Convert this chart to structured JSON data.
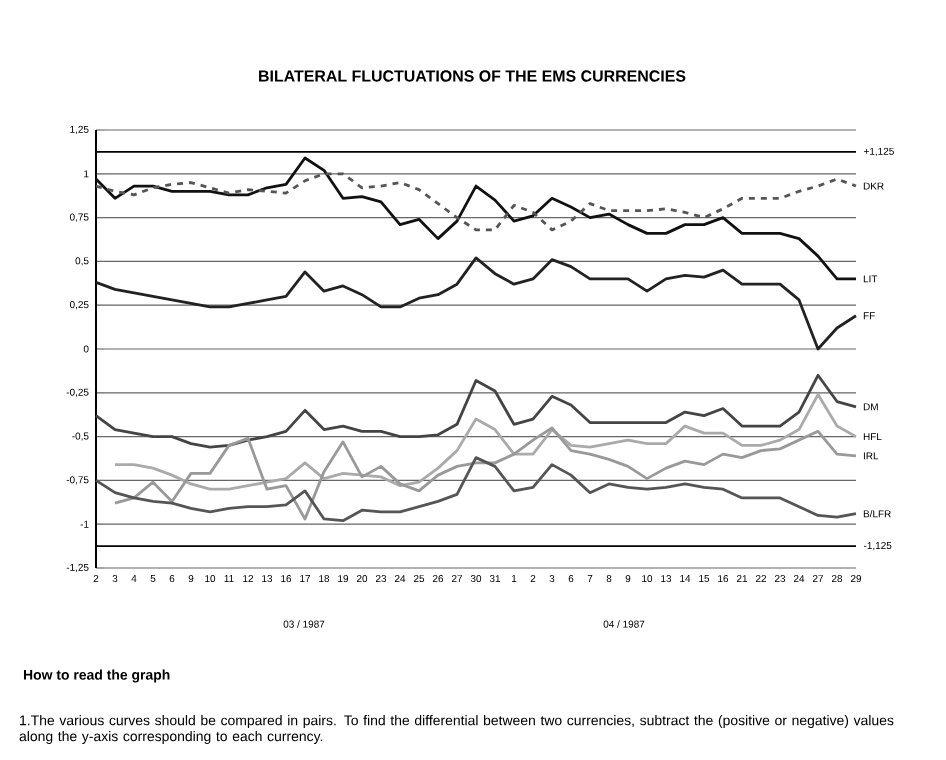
{
  "chart_data": {
    "type": "line",
    "title": "BILATERAL FLUCTUATIONS OF THE EMS CURRENCIES",
    "categories": [
      "2",
      "3",
      "4",
      "5",
      "6",
      "9",
      "10",
      "11",
      "12",
      "13",
      "16",
      "17",
      "18",
      "19",
      "20",
      "23",
      "24",
      "25",
      "26",
      "27",
      "30",
      "31",
      "1",
      "2",
      "3",
      "6",
      "7",
      "8",
      "9",
      "10",
      "13",
      "14",
      "15",
      "16",
      "21",
      "22",
      "23",
      "24",
      "27",
      "28",
      "29"
    ],
    "series": [
      {
        "name": "LIT",
        "color": "#111111",
        "values": [
          0.97,
          0.86,
          0.93,
          0.93,
          0.9,
          0.9,
          0.9,
          0.88,
          0.88,
          0.92,
          0.94,
          1.09,
          1.02,
          0.86,
          0.87,
          0.84,
          0.71,
          0.74,
          0.63,
          0.73,
          0.93,
          0.85,
          0.73,
          0.76,
          0.86,
          0.81,
          0.75,
          0.77,
          0.71,
          0.66,
          0.66,
          0.71,
          0.71,
          0.75,
          0.66,
          0.66,
          0.66,
          0.63,
          0.53,
          0.4,
          0.4
        ]
      },
      {
        "name": "DKR",
        "color": "#555555",
        "line_style": "dashed",
        "values": [
          0.93,
          0.9,
          0.88,
          0.92,
          0.94,
          0.95,
          0.92,
          0.89,
          0.91,
          0.9,
          0.89,
          0.96,
          1.0,
          1.0,
          0.92,
          0.93,
          0.95,
          0.91,
          0.83,
          0.75,
          0.68,
          0.68,
          0.82,
          0.78,
          0.68,
          0.73,
          0.83,
          0.79,
          0.79,
          0.79,
          0.8,
          0.78,
          0.75,
          0.8,
          0.86,
          0.86,
          0.86,
          0.9,
          0.93,
          0.97,
          0.93
        ]
      },
      {
        "name": "FF",
        "color": "#222222",
        "values": [
          0.38,
          0.34,
          0.32,
          0.3,
          0.28,
          0.26,
          0.24,
          0.24,
          0.26,
          0.28,
          0.3,
          0.44,
          0.33,
          0.36,
          0.31,
          0.24,
          0.24,
          0.29,
          0.31,
          0.37,
          0.52,
          0.43,
          0.37,
          0.4,
          0.51,
          0.47,
          0.4,
          0.4,
          0.4,
          0.33,
          0.4,
          0.42,
          0.41,
          0.45,
          0.37,
          0.37,
          0.37,
          0.28,
          0.0,
          0.12,
          0.19
        ]
      },
      {
        "name": "DM",
        "color": "#444444",
        "values": [
          -0.38,
          -0.46,
          -0.48,
          -0.5,
          -0.5,
          -0.54,
          -0.56,
          -0.55,
          -0.52,
          -0.5,
          -0.47,
          -0.35,
          -0.46,
          -0.44,
          -0.47,
          -0.47,
          -0.5,
          -0.5,
          -0.49,
          -0.43,
          -0.18,
          -0.24,
          -0.43,
          -0.4,
          -0.27,
          -0.32,
          -0.42,
          -0.42,
          -0.42,
          -0.42,
          -0.42,
          -0.36,
          -0.38,
          -0.34,
          -0.44,
          -0.44,
          -0.44,
          -0.36,
          -0.15,
          -0.3,
          -0.33
        ]
      },
      {
        "name": "HFL",
        "color": "#aaaaaa",
        "values": [
          null,
          -0.66,
          -0.66,
          -0.68,
          -0.72,
          -0.77,
          -0.8,
          -0.8,
          -0.78,
          -0.76,
          -0.74,
          -0.65,
          -0.74,
          -0.71,
          -0.72,
          -0.73,
          -0.78,
          -0.76,
          -0.68,
          -0.58,
          -0.4,
          -0.46,
          -0.6,
          -0.6,
          -0.46,
          -0.55,
          -0.56,
          -0.54,
          -0.52,
          -0.54,
          -0.54,
          -0.44,
          -0.48,
          -0.48,
          -0.55,
          -0.55,
          -0.52,
          -0.46,
          -0.26,
          -0.44,
          -0.5
        ]
      },
      {
        "name": "IRL",
        "color": "#999999",
        "values": [
          null,
          -0.88,
          -0.85,
          -0.76,
          -0.87,
          -0.71,
          -0.71,
          -0.55,
          -0.51,
          -0.8,
          -0.78,
          -0.97,
          -0.7,
          -0.53,
          -0.73,
          -0.67,
          -0.77,
          -0.81,
          -0.72,
          -0.67,
          -0.65,
          -0.65,
          -0.6,
          -0.52,
          -0.45,
          -0.58,
          -0.6,
          -0.63,
          -0.67,
          -0.74,
          -0.68,
          -0.64,
          -0.66,
          -0.6,
          -0.62,
          -0.58,
          -0.57,
          -0.52,
          -0.47,
          -0.6,
          -0.61
        ]
      },
      {
        "name": "B/LFR",
        "color": "#555555",
        "values": [
          -0.75,
          -0.82,
          -0.85,
          -0.87,
          -0.88,
          -0.91,
          -0.93,
          -0.91,
          -0.9,
          -0.9,
          -0.89,
          -0.81,
          -0.97,
          -0.98,
          -0.92,
          -0.93,
          -0.93,
          -0.9,
          -0.87,
          -0.83,
          -0.62,
          -0.67,
          -0.81,
          -0.79,
          -0.66,
          -0.72,
          -0.82,
          -0.77,
          -0.79,
          -0.8,
          -0.79,
          -0.77,
          -0.79,
          -0.8,
          -0.85,
          -0.85,
          -0.85,
          -0.9,
          -0.95,
          -0.96,
          -0.94
        ]
      }
    ],
    "ylim": [
      -1.25,
      1.25
    ],
    "yticks": [
      {
        "value": 1.25,
        "label": "1,25"
      },
      1,
      {
        "value": 0.75,
        "label": "0,75"
      },
      {
        "value": 0.5,
        "label": "0,5"
      },
      {
        "value": 0.25,
        "label": "0,25"
      },
      0,
      {
        "value": -0.25,
        "label": "-0,25"
      },
      {
        "value": -0.5,
        "label": "-0,5"
      },
      {
        "value": -0.75,
        "label": "-0,75"
      },
      -1,
      {
        "value": -1.25,
        "label": "-1,25"
      }
    ],
    "grid": "y",
    "ref_lines": [
      {
        "axis": "y",
        "value": 1.125,
        "label": "+1,125"
      },
      {
        "axis": "y",
        "value": -1.125,
        "label": "-1,125"
      }
    ],
    "legend": false,
    "annotations": [
      "03 / 1987",
      "04 / 1987",
      "How to read the graph",
      "1.The various curves should be compared in pairs. To find the differential between two currencies, subtract the (positive or negative) values along the y-axis corresponding to each currency."
    ]
  }
}
